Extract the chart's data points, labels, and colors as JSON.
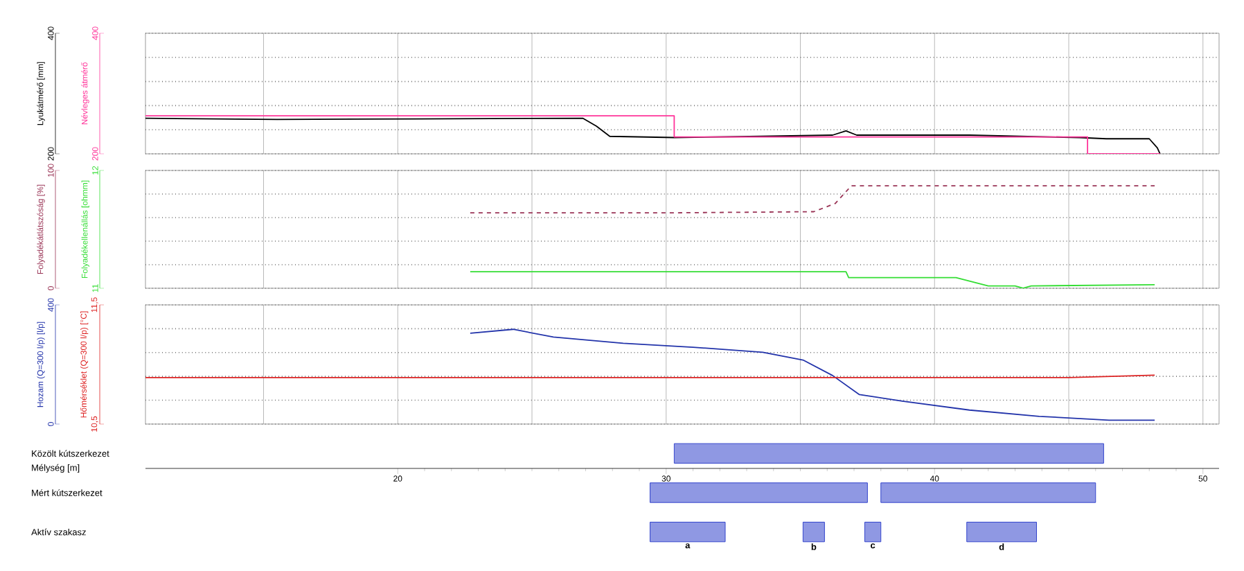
{
  "chart_data": [
    {
      "type": "line",
      "ylabel": "Lyukátmérő [mm]",
      "y2label": "Névleges átmérő",
      "xlim": [
        10.6,
        50.6
      ],
      "xticks": [
        {
          "value": 15,
          "label": null
        },
        {
          "value": 20,
          "label": null
        },
        {
          "value": 25,
          "label": null
        },
        {
          "value": 30,
          "label": null
        },
        {
          "value": 35,
          "label": null
        },
        {
          "value": 40,
          "label": null
        },
        {
          "value": 45,
          "label": null
        },
        {
          "value": 50,
          "label": null
        }
      ],
      "ylim": [
        200,
        400
      ],
      "yticks": [
        200,
        {
          "value": 240,
          "label": null
        },
        {
          "value": 280,
          "label": null
        },
        {
          "value": 320,
          "label": null
        },
        {
          "value": 360,
          "label": null
        },
        400
      ],
      "y2lim": [
        200,
        400
      ],
      "y2ticks": [
        200,
        400
      ],
      "tick_labels": "y",
      "grid": true,
      "series": [
        {
          "color": "#ff3399",
          "type": "step",
          "axis": "y2",
          "x": [
            10.6,
            30.3,
            45.7,
            48.4
          ],
          "values": [
            263,
            228,
            200,
            200
          ]
        },
        {
          "color": "#000000",
          "x": [
            10.6,
            15.5,
            20.7,
            26.9,
            27.4,
            27.9,
            30.3,
            33.5,
            36.2,
            36.7,
            37.1,
            41.3,
            45.4,
            46.4,
            48.0,
            48.3,
            48.4
          ],
          "values": [
            259,
            257,
            258,
            259,
            246,
            229,
            227,
            229,
            231,
            238,
            231,
            231,
            227,
            225,
            225,
            210,
            200
          ]
        }
      ]
    },
    {
      "type": "line",
      "ylabel": "Folyadékátlátszóság [%]",
      "y2label": "Folyadékellenállás [ohmm]",
      "xlim": [
        10.6,
        50.6
      ],
      "xticks": [
        {
          "value": 15,
          "label": null
        },
        {
          "value": 20,
          "label": null
        },
        {
          "value": 25,
          "label": null
        },
        {
          "value": 30,
          "label": null
        },
        {
          "value": 35,
          "label": null
        },
        {
          "value": 40,
          "label": null
        },
        {
          "value": 45,
          "label": null
        },
        {
          "value": 50,
          "label": null
        }
      ],
      "ylim": [
        0,
        100
      ],
      "yticks": [
        0,
        {
          "value": 20,
          "label": null
        },
        {
          "value": 40,
          "label": null
        },
        {
          "value": 60,
          "label": null
        },
        {
          "value": 80,
          "label": null
        },
        100
      ],
      "y2lim": [
        11,
        12
      ],
      "y2ticks": [
        11,
        12
      ],
      "tick_labels": "y",
      "grid": true,
      "series": [
        {
          "color": "#993355",
          "line_style": "dashed",
          "x": [
            22.7,
            30.0,
            35.5,
            36.3,
            36.9,
            48.2
          ],
          "values": [
            64,
            64,
            65,
            72,
            87,
            87
          ]
        },
        {
          "color": "#33dd33",
          "axis": "y2",
          "x": [
            22.7,
            36.7,
            36.8,
            40.8,
            42.0,
            43.0,
            43.3,
            43.6,
            48.2
          ],
          "values": [
            11.14,
            11.14,
            11.09,
            11.09,
            11.02,
            11.02,
            11.0,
            11.02,
            11.03
          ]
        }
      ]
    },
    {
      "type": "line",
      "ylabel": "Hozam (Q=300 l/p) [l/p]",
      "y2label": "Hőmérséklet (Q=300 l/p) [°C]",
      "xlim": [
        10.6,
        50.6
      ],
      "xticks": [
        {
          "value": 15,
          "label": null
        },
        {
          "value": 20,
          "label": null
        },
        {
          "value": 25,
          "label": null
        },
        {
          "value": 30,
          "label": null
        },
        {
          "value": 35,
          "label": null
        },
        {
          "value": 40,
          "label": null
        },
        {
          "value": 45,
          "label": null
        },
        {
          "value": 50,
          "label": null
        }
      ],
      "ylim": [
        0,
        400
      ],
      "yticks": [
        0,
        {
          "value": 80,
          "label": null
        },
        {
          "value": 160,
          "label": null
        },
        {
          "value": 240,
          "label": null
        },
        {
          "value": 320,
          "label": null
        },
        400
      ],
      "y2lim": [
        10.5,
        11.5
      ],
      "y2ticks": [
        {
          "value": 10.5,
          "label": "10,5"
        },
        {
          "value": 11.5,
          "label": "11,5"
        }
      ],
      "tick_labels": "y",
      "grid": true,
      "series": [
        {
          "color": "#2233aa",
          "x": [
            22.7,
            24.3,
            25.8,
            28.4,
            31.0,
            33.6,
            35.1,
            36.2,
            37.2,
            38.8,
            41.3,
            43.9,
            46.5,
            48.2
          ],
          "values": [
            305,
            318,
            292,
            271,
            258,
            241,
            215,
            163,
            99,
            77,
            47,
            26,
            13,
            13
          ]
        },
        {
          "color": "#dd2222",
          "axis": "y2",
          "x": [
            10.6,
            45.0,
            48.2
          ],
          "values": [
            10.89,
            10.89,
            10.91
          ]
        }
      ]
    },
    {
      "type": "bar",
      "orientation": "horizontal",
      "xlabel": "Mélység [m]",
      "xlim": [
        10.6,
        50.6
      ],
      "xticks": [
        20,
        30,
        40,
        50
      ],
      "categories": [
        "Közölt kútszerkezet",
        "Mért kútszerkezet",
        "Aktív szakasz"
      ],
      "series": [
        {
          "color": "#3344cc",
          "base": [
            30.3,
            29.4,
            29.4
          ],
          "values": [
            16.0,
            8.1,
            2.8
          ],
          "value_labels": [
            null,
            null,
            "a"
          ]
        },
        {
          "color": "#3344cc",
          "base": [
            null,
            38.0,
            35.1
          ],
          "values": [
            null,
            8.0,
            0.8
          ],
          "value_labels": [
            null,
            null,
            "b"
          ]
        },
        {
          "color": "#3344cc",
          "base": [
            null,
            null,
            37.4
          ],
          "values": [
            null,
            null,
            0.6
          ],
          "value_labels": [
            null,
            null,
            "c"
          ]
        },
        {
          "color": "#3344cc",
          "base": [
            null,
            null,
            41.2
          ],
          "values": [
            null,
            null,
            2.6
          ],
          "value_labels": [
            null,
            null,
            "d"
          ]
        }
      ]
    }
  ]
}
